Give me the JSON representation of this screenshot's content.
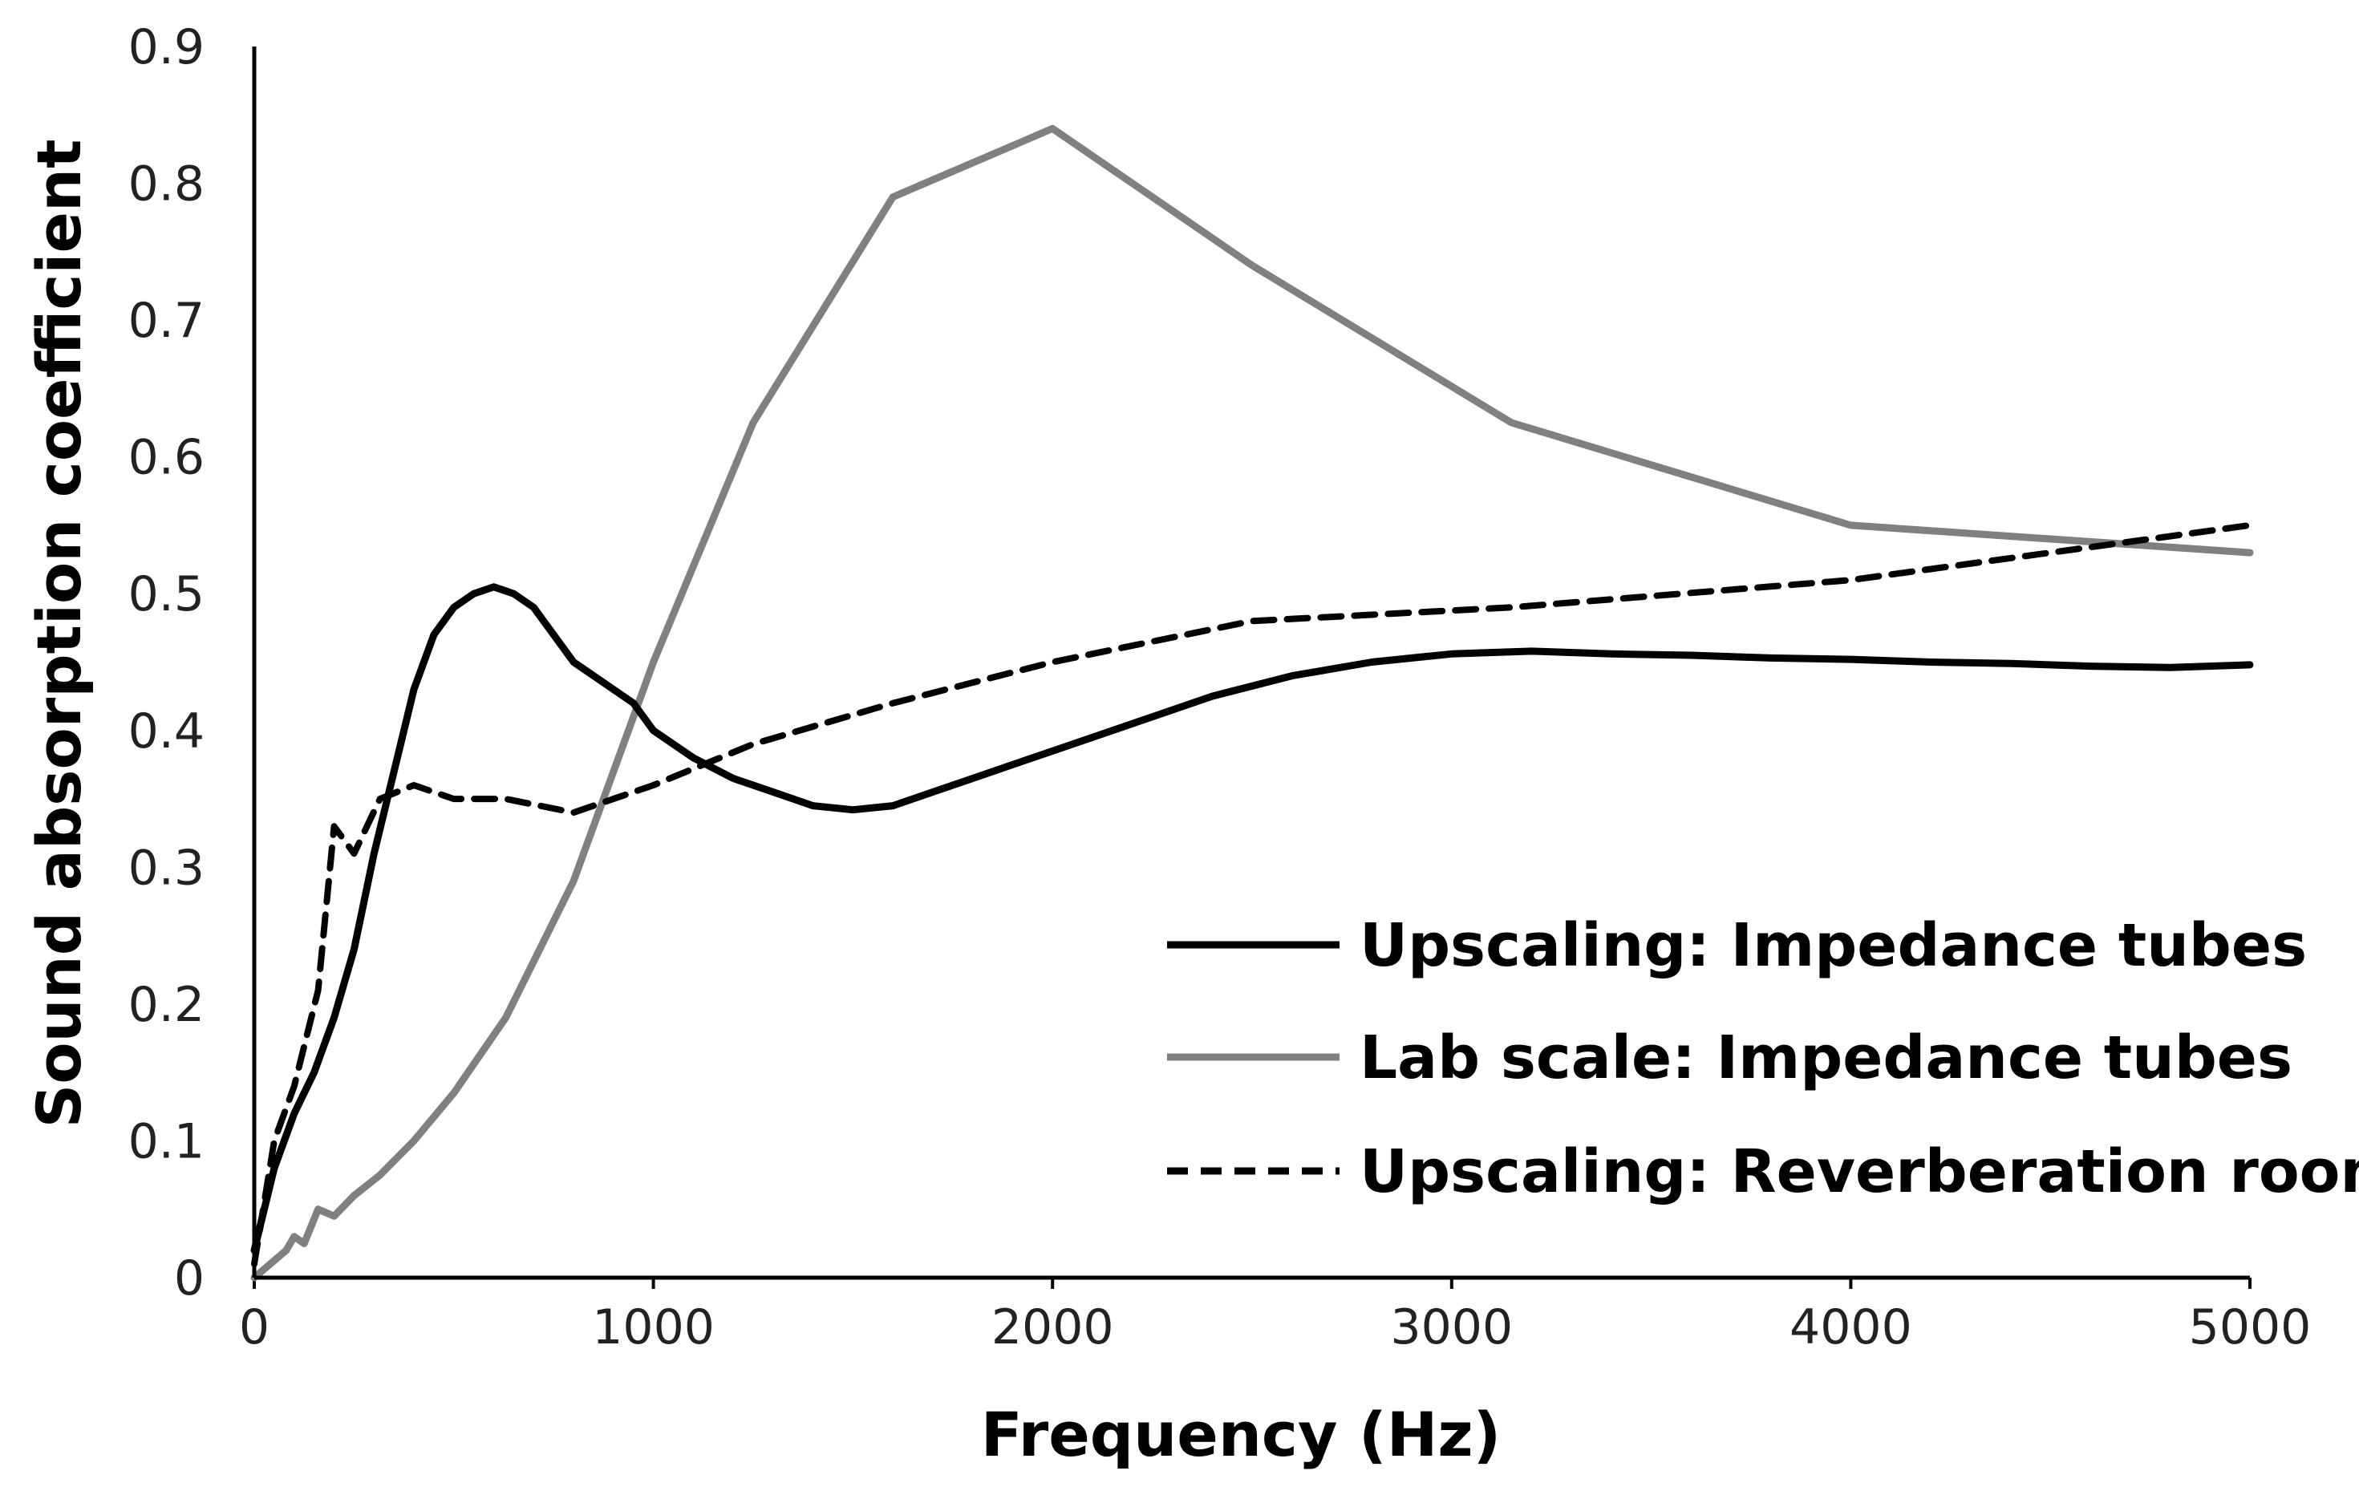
{
  "chart_data": {
    "type": "line",
    "title": "",
    "xlabel": "Frequency (Hz)",
    "ylabel": "Sound absorption coefficient",
    "xlim": [
      0,
      5000
    ],
    "ylim": [
      0,
      0.9
    ],
    "xticks": [
      0,
      1000,
      2000,
      3000,
      4000,
      5000
    ],
    "yticks": [
      0,
      0.1,
      0.2,
      0.3,
      0.4,
      0.5,
      0.6,
      0.7,
      0.8,
      0.9
    ],
    "xtick_labels": [
      "0",
      "1000",
      "2000",
      "3000",
      "4000",
      "5000"
    ],
    "ytick_labels": [
      "0",
      "0.1",
      "0.2",
      "0.3",
      "0.4",
      "0.5",
      "0.6",
      "0.7",
      "0.8",
      "0.9"
    ],
    "grid": false,
    "legend_position": "bottom-right",
    "series": [
      {
        "name": "Upscaling: Impedance tubes",
        "color": "#000000",
        "style": "solid",
        "x": [
          0,
          50,
          100,
          150,
          200,
          250,
          300,
          350,
          400,
          450,
          500,
          550,
          600,
          650,
          700,
          750,
          800,
          850,
          900,
          950,
          1000,
          1100,
          1200,
          1300,
          1400,
          1500,
          1600,
          1700,
          1800,
          1900,
          2000,
          2200,
          2400,
          2600,
          2800,
          3000,
          3200,
          3400,
          3600,
          3800,
          4000,
          4200,
          4400,
          4600,
          4800,
          5000
        ],
        "y": [
          0.02,
          0.08,
          0.12,
          0.15,
          0.19,
          0.24,
          0.31,
          0.37,
          0.43,
          0.47,
          0.49,
          0.5,
          0.505,
          0.5,
          0.49,
          0.47,
          0.45,
          0.44,
          0.43,
          0.42,
          0.4,
          0.38,
          0.365,
          0.355,
          0.345,
          0.342,
          0.345,
          0.355,
          0.365,
          0.375,
          0.385,
          0.405,
          0.425,
          0.44,
          0.45,
          0.456,
          0.458,
          0.456,
          0.455,
          0.453,
          0.452,
          0.45,
          0.449,
          0.447,
          0.446,
          0.448
        ]
      },
      {
        "name": "Lab scale: Impedance tubes",
        "color": "#808080",
        "style": "solid",
        "x": [
          0,
          80,
          100,
          125,
          160,
          200,
          250,
          315,
          400,
          500,
          630,
          800,
          1000,
          1250,
          1600,
          2000,
          2500,
          3150,
          4000,
          5000
        ],
        "y": [
          0,
          0.02,
          0.03,
          0.025,
          0.05,
          0.045,
          0.06,
          0.075,
          0.1,
          0.135,
          0.19,
          0.29,
          0.45,
          0.625,
          0.79,
          0.84,
          0.74,
          0.625,
          0.55,
          0.53
        ]
      },
      {
        "name": "Upscaling: Reverberation room",
        "color": "#000000",
        "style": "dashed",
        "x": [
          0,
          50,
          100,
          160,
          200,
          250,
          315,
          400,
          500,
          630,
          800,
          1000,
          1250,
          1600,
          2000,
          2500,
          3150,
          4000,
          5000
        ],
        "y": [
          0.01,
          0.1,
          0.14,
          0.21,
          0.33,
          0.31,
          0.35,
          0.36,
          0.35,
          0.35,
          0.34,
          0.36,
          0.39,
          0.42,
          0.45,
          0.48,
          0.49,
          0.51,
          0.55
        ]
      }
    ]
  }
}
